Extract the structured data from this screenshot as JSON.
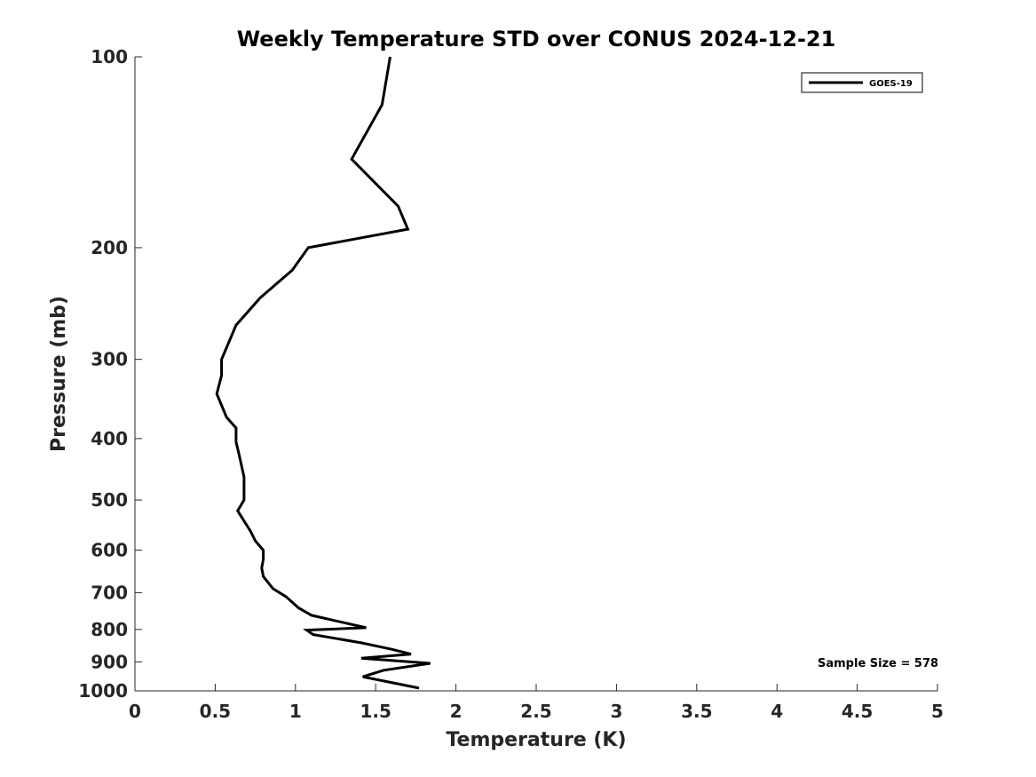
{
  "chart_data": {
    "type": "line",
    "title": "Weekly Temperature STD over CONUS 2024-12-21",
    "xlabel": "Temperature (K)",
    "ylabel": "Pressure (mb)",
    "xlim": [
      0,
      5
    ],
    "ylim": [
      1000,
      100
    ],
    "y_scale": "log",
    "y_reversed": true,
    "x_ticks": [
      0,
      0.5,
      1,
      1.5,
      2,
      2.5,
      3,
      3.5,
      4,
      4.5,
      5
    ],
    "x_tick_labels": [
      "0",
      "0.5",
      "1",
      "1.5",
      "2",
      "2.5",
      "3",
      "3.5",
      "4",
      "4.5",
      "5"
    ],
    "y_ticks": [
      100,
      200,
      300,
      400,
      500,
      600,
      700,
      800,
      900,
      1000
    ],
    "y_tick_labels": [
      "100",
      "200",
      "300",
      "400",
      "500",
      "600",
      "700",
      "800",
      "900",
      "1000"
    ],
    "grid": false,
    "legend_position": "top-right",
    "series": [
      {
        "name": "GOES-19",
        "color": "#000000",
        "temperature": [
          1.59,
          1.54,
          1.35,
          1.64,
          1.7,
          1.08,
          0.98,
          0.78,
          0.63,
          0.54,
          0.54,
          0.51,
          0.57,
          0.63,
          0.63,
          0.65,
          0.68,
          0.68,
          0.64,
          0.72,
          0.75,
          0.8,
          0.8,
          0.79,
          0.8,
          0.86,
          0.94,
          1.02,
          1.1,
          1.44,
          1.07,
          1.11,
          1.41,
          1.6,
          1.72,
          1.41,
          1.84,
          1.55,
          1.42,
          1.77
        ],
        "pressure": [
          100,
          119,
          145,
          172,
          187,
          200,
          217,
          240,
          265,
          300,
          318,
          340,
          370,
          385,
          405,
          425,
          460,
          500,
          520,
          560,
          580,
          600,
          620,
          640,
          660,
          690,
          710,
          740,
          760,
          795,
          802,
          815,
          840,
          860,
          875,
          888,
          905,
          928,
          950,
          990
        ]
      }
    ],
    "annotations": [
      "Sample Size = 578"
    ]
  }
}
